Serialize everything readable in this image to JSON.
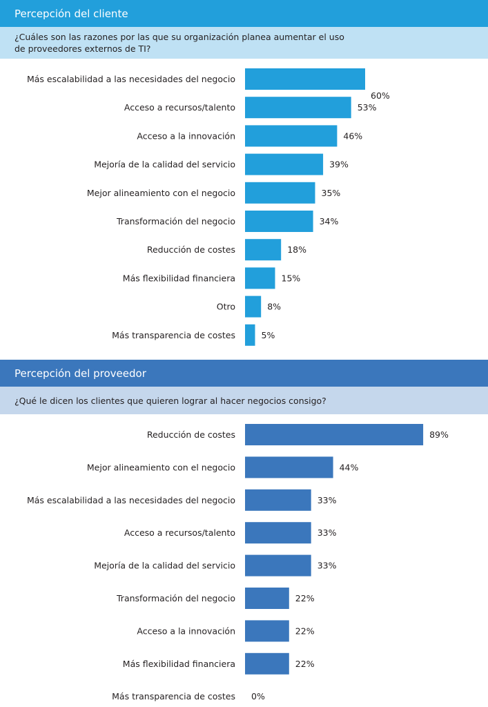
{
  "chart_data": [
    {
      "type": "bar",
      "orientation": "horizontal",
      "title": "Percepción del cliente",
      "subtitle": "¿Cuáles son las razones por las que su organización planea aumentar el uso de proveedores externos de TI?",
      "categories": [
        "Más escalabilidad a las necesidades del negocio",
        "Acceso a recursos/talento",
        "Acceso a la innovación",
        "Mejoría de la calidad del servicio",
        "Mejor alineamiento con el negocio",
        "Transformación del negocio",
        "Reducción de costes",
        "Más flexibilidad financiera",
        "Otro",
        "Más transparencia de costes"
      ],
      "values": [
        60,
        53,
        46,
        39,
        35,
        34,
        18,
        15,
        8,
        5
      ],
      "value_labels": [
        "60%",
        "53%",
        "46%",
        "39%",
        "35%",
        "34%",
        "18%",
        "15%",
        "8%",
        "5%"
      ],
      "unit": "%",
      "xlim": [
        0,
        100
      ],
      "grid": false,
      "bar_color": "#229fdb",
      "header_color": "#229fdb",
      "question_bg": "#bfe1f4"
    },
    {
      "type": "bar",
      "orientation": "horizontal",
      "title": "Percepción del proveedor",
      "subtitle": "¿Qué le dicen los clientes que quieren lograr al hacer negocios consigo?",
      "categories": [
        "Reducción de costes",
        "Mejor alineamiento con el negocio",
        "Más escalabilidad a las necesidades del negocio",
        "Acceso a recursos/talento",
        "Mejoría de la calidad del servicio",
        "Transformación del negocio",
        "Acceso a la innovación",
        "Más flexibilidad financiera",
        "Más transparencia de costes"
      ],
      "values": [
        89,
        44,
        33,
        33,
        33,
        22,
        22,
        22,
        0
      ],
      "value_labels": [
        "89%",
        "44%",
        "33%",
        "33%",
        "33%",
        "22%",
        "22%",
        "22%",
        "0%"
      ],
      "unit": "%",
      "xlim": [
        0,
        100
      ],
      "grid": false,
      "bar_color": "#3b77bc",
      "header_color": "#3b77bc",
      "question_bg": "#c5d7ec"
    }
  ]
}
